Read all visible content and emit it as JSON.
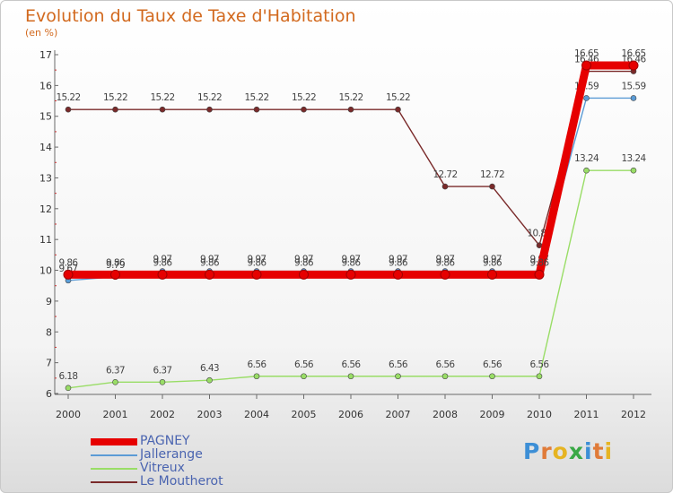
{
  "chart_data": {
    "type": "line",
    "title": "Evolution du Taux de Taxe d'Habitation",
    "subtitle": "(en %)",
    "xlabel": "",
    "ylabel": "",
    "ylim": [
      6,
      17
    ],
    "yticks": [
      "6",
      "7",
      "8",
      "9",
      "10",
      "11",
      "12",
      "13",
      "14",
      "15",
      "16",
      "17"
    ],
    "categories": [
      "2000",
      "2001",
      "2002",
      "2003",
      "2004",
      "2005",
      "2006",
      "2007",
      "2008",
      "2009",
      "2010",
      "2011",
      "2012"
    ],
    "series": [
      {
        "name": "PAGNEY",
        "color": "#e60000",
        "values": [
          9.86,
          9.86,
          9.86,
          9.86,
          9.86,
          9.86,
          9.86,
          9.86,
          9.86,
          9.86,
          9.86,
          16.65,
          16.65
        ],
        "labels": [
          "9.86",
          "9.86",
          "9.86",
          "9.86",
          "9.86",
          "9.86",
          "9.86",
          "9.86",
          "9.86",
          "9.86",
          "9.86",
          "16.65",
          "16.65"
        ]
      },
      {
        "name": "Jallerange",
        "color": "#5b9bd5",
        "values": [
          9.67,
          9.79,
          9.97,
          9.97,
          9.97,
          9.97,
          9.97,
          9.97,
          9.97,
          9.97,
          9.97,
          15.59,
          15.59
        ],
        "labels": [
          "9.67",
          "9.79",
          "9.97",
          "9.97",
          "9.97",
          "9.97",
          "9.97",
          "9.97",
          "9.97",
          "9.97",
          "9.97",
          "15.59",
          "15.59"
        ]
      },
      {
        "name": "Vitreux",
        "color": "#99dd66",
        "values": [
          6.18,
          6.37,
          6.37,
          6.43,
          6.56,
          6.56,
          6.56,
          6.56,
          6.56,
          6.56,
          6.56,
          13.24,
          13.24
        ],
        "labels": [
          "6.18",
          "6.37",
          "6.37",
          "6.43",
          "6.56",
          "6.56",
          "6.56",
          "6.56",
          "6.56",
          "6.56",
          "6.56",
          "13.24",
          "13.24"
        ]
      },
      {
        "name": "Le Moutherot",
        "color": "#7a2a2a",
        "values": [
          15.22,
          15.22,
          15.22,
          15.22,
          15.22,
          15.22,
          15.22,
          15.22,
          12.72,
          12.72,
          10.81,
          16.46,
          16.46
        ],
        "labels": [
          "15.22",
          "15.22",
          "15.22",
          "15.22",
          "15.22",
          "15.22",
          "15.22",
          "15.22",
          "12.72",
          "12.72",
          "10.81",
          "16.46",
          "16.46"
        ]
      }
    ],
    "legend": "bottom-left"
  },
  "logo": {
    "letters": [
      "P",
      "r",
      "o",
      "x",
      "i",
      "t",
      "i"
    ],
    "colors": [
      "#3d8fd6",
      "#e07b39",
      "#e6b422",
      "#39a845",
      "#3d8fd6",
      "#e07b39",
      "#e6b422"
    ]
  }
}
